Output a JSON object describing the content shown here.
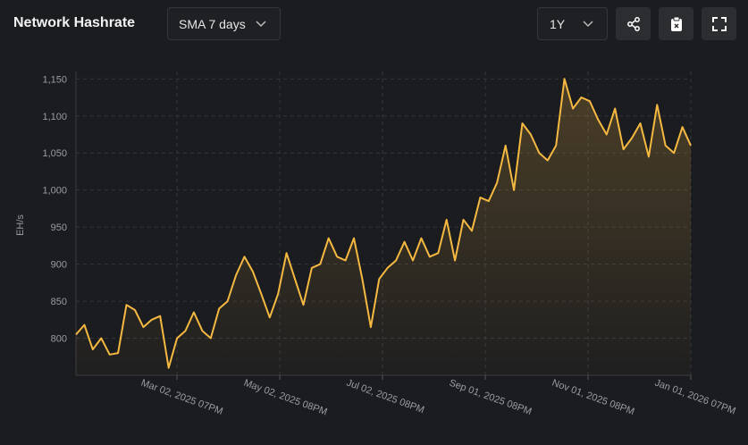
{
  "header": {
    "title": "Network Hashrate",
    "sma": "SMA 7 days",
    "range": "1Y"
  },
  "chart_data": {
    "type": "line",
    "y_label": "EH/s",
    "x": [
      "Jan 01, 2025",
      "Jan 06, 2025",
      "Jan 11, 2025",
      "Jan 16, 2025",
      "Jan 21, 2025",
      "Jan 26, 2025",
      "Jan 31, 2025",
      "Feb 05, 2025",
      "Feb 10, 2025",
      "Feb 15, 2025",
      "Feb 20, 2025",
      "Feb 25, 2025",
      "Mar 02, 2025",
      "Mar 07, 2025",
      "Mar 12, 2025",
      "Mar 17, 2025",
      "Mar 22, 2025",
      "Mar 27, 2025",
      "Apr 01, 2025",
      "Apr 06, 2025",
      "Apr 11, 2025",
      "Apr 16, 2025",
      "Apr 21, 2025",
      "Apr 26, 2025",
      "May 01, 2025",
      "May 06, 2025",
      "May 11, 2025",
      "May 16, 2025",
      "May 21, 2025",
      "May 26, 2025",
      "May 31, 2025",
      "Jun 05, 2025",
      "Jun 10, 2025",
      "Jun 15, 2025",
      "Jun 20, 2025",
      "Jun 25, 2025",
      "Jun 30, 2025",
      "Jul 05, 2025",
      "Jul 10, 2025",
      "Jul 15, 2025",
      "Jul 20, 2025",
      "Jul 25, 2025",
      "Jul 30, 2025",
      "Aug 04, 2025",
      "Aug 09, 2025",
      "Aug 14, 2025",
      "Aug 19, 2025",
      "Aug 24, 2025",
      "Aug 29, 2025",
      "Sep 03, 2025",
      "Sep 08, 2025",
      "Sep 13, 2025",
      "Sep 18, 2025",
      "Sep 23, 2025",
      "Sep 28, 2025",
      "Oct 03, 2025",
      "Oct 08, 2025",
      "Oct 13, 2025",
      "Oct 18, 2025",
      "Oct 23, 2025",
      "Oct 28, 2025",
      "Nov 02, 2025",
      "Nov 07, 2025",
      "Nov 12, 2025",
      "Nov 17, 2025",
      "Nov 22, 2025",
      "Nov 27, 2025",
      "Dec 02, 2025",
      "Dec 07, 2025",
      "Dec 12, 2025",
      "Dec 17, 2025",
      "Dec 22, 2025",
      "Dec 27, 2025",
      "Jan 01, 2026"
    ],
    "series": [
      {
        "name": "Network Hashrate",
        "color": "#f5b942",
        "values": [
          805,
          818,
          785,
          800,
          778,
          780,
          845,
          838,
          815,
          825,
          830,
          760,
          800,
          810,
          835,
          810,
          800,
          840,
          850,
          885,
          910,
          890,
          860,
          828,
          860,
          915,
          880,
          845,
          895,
          900,
          935,
          910,
          905,
          935,
          880,
          815,
          880,
          895,
          905,
          930,
          905,
          935,
          910,
          915,
          960,
          905,
          960,
          945,
          990,
          985,
          1010,
          1060,
          1000,
          1090,
          1075,
          1050,
          1040,
          1060,
          1150,
          1110,
          1125,
          1120,
          1095,
          1075,
          1110,
          1055,
          1070,
          1090,
          1045,
          1115,
          1060,
          1050,
          1085,
          1060
        ]
      }
    ],
    "xlim": [
      "Jan 01, 2025",
      "Jan 01, 2026"
    ],
    "xticks": [
      {
        "value": "Mar 02, 2025",
        "label": "Mar 02, 2025 07PM"
      },
      {
        "value": "May 02, 2025",
        "label": "May 02, 2025 08PM"
      },
      {
        "value": "Jul 02, 2025",
        "label": "Jul 02, 2025 08PM"
      },
      {
        "value": "Sep 01, 2025",
        "label": "Sep 01, 2025 08PM"
      },
      {
        "value": "Nov 01, 2025",
        "label": "Nov 01, 2025 08PM"
      },
      {
        "value": "Jan 01, 2026",
        "label": "Jan 01, 2026 07PM"
      }
    ],
    "ylim": [
      750,
      1160
    ],
    "yticks": [
      800,
      850,
      900,
      950,
      {
        "value": 1000,
        "label": "1,000"
      },
      {
        "value": 1050,
        "label": "1,050"
      },
      {
        "value": 1100,
        "label": "1,100"
      },
      {
        "value": 1150,
        "label": "1,150"
      }
    ],
    "grid": true
  }
}
